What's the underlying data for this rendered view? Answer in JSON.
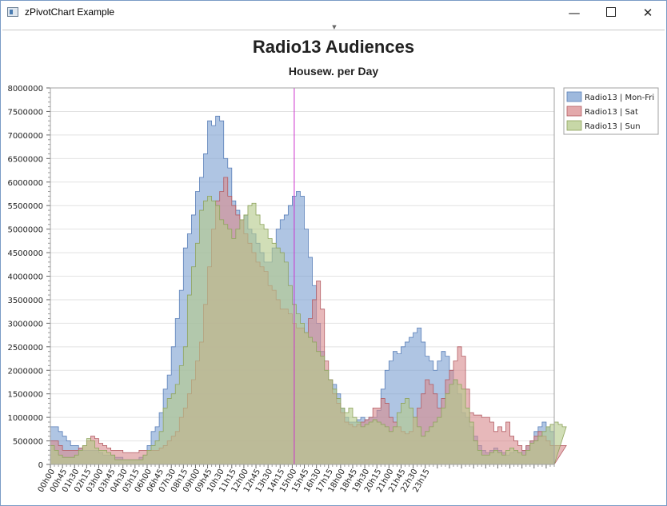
{
  "window": {
    "title": "zPivotChart Example",
    "icon": "app-window-icon",
    "controls": {
      "minimize": "—",
      "close": "✕"
    }
  },
  "colors": {
    "mon_fri": "#7ea1d2",
    "sat": "#d98c8f",
    "sun": "#b4c98a",
    "cursor": "#cc33cc",
    "grid": "#e2e2e2"
  },
  "chart_data": {
    "type": "area",
    "title": "Radio13 Audiences",
    "subtitle": "Housew. per Day",
    "xlabel": "",
    "ylabel": "",
    "ylim": [
      0,
      8000000
    ],
    "yticks": [
      0,
      500000,
      1000000,
      1500000,
      2000000,
      2500000,
      3000000,
      3500000,
      4000000,
      4500000,
      5000000,
      5500000,
      6000000,
      6500000,
      7000000,
      7500000,
      8000000
    ],
    "x_tick_labels": [
      "00h00",
      "00h45",
      "01h30",
      "02h15",
      "03h00",
      "03h45",
      "04h30",
      "05h15",
      "06h00",
      "06h45",
      "07h30",
      "08h15",
      "09h00",
      "09h45",
      "10h30",
      "11h15",
      "12h00",
      "12h45",
      "13h30",
      "14h15",
      "15h00",
      "15h45",
      "16h30",
      "17h15",
      "18h00",
      "18h45",
      "19h30",
      "20h15",
      "21h00",
      "21h45",
      "22h30",
      "23h15"
    ],
    "x_interval_minutes": 15,
    "grid": true,
    "step": true,
    "legend_position": "right-top",
    "cursor_at": "15h00",
    "series": [
      {
        "name": "Radio13 | Mon-Fri",
        "values": [
          800000,
          800000,
          700000,
          600000,
          500000,
          400000,
          400000,
          350000,
          300000,
          300000,
          300000,
          300000,
          250000,
          200000,
          200000,
          200000,
          150000,
          150000,
          100000,
          100000,
          100000,
          100000,
          150000,
          200000,
          400000,
          700000,
          800000,
          1100000,
          1600000,
          1900000,
          2500000,
          3100000,
          3700000,
          4600000,
          4900000,
          5300000,
          5800000,
          6100000,
          6600000,
          7300000,
          7200000,
          7400000,
          7300000,
          6500000,
          6300000,
          5600000,
          5400000,
          5200000,
          5300000,
          5000000,
          4900000,
          4700000,
          4500000,
          4300000,
          4300000,
          4600000,
          5000000,
          5200000,
          5300000,
          5500000,
          5700000,
          5800000,
          5700000,
          5000000,
          4400000,
          3800000,
          3000000,
          2400000,
          2000000,
          1800000,
          1700000,
          1500000,
          1200000,
          1000000,
          900000,
          900000,
          950000,
          1000000,
          950000,
          1000000,
          1000000,
          1150000,
          1600000,
          2000000,
          2200000,
          2400000,
          2350000,
          2500000,
          2600000,
          2700000,
          2800000,
          2900000,
          2600000,
          2300000,
          2200000,
          2000000,
          2200000,
          2400000,
          2300000,
          2000000,
          1800000,
          1500000,
          1100000,
          1000000,
          800000,
          600000,
          400000,
          300000,
          250000,
          300000,
          350000,
          300000,
          250000,
          200000,
          250000,
          300000,
          250000,
          300000,
          400000,
          500000,
          700000,
          800000,
          900000,
          800000,
          700000
        ]
      },
      {
        "name": "Radio13 | Sat",
        "values": [
          500000,
          500000,
          400000,
          300000,
          300000,
          300000,
          300000,
          350000,
          400000,
          500000,
          600000,
          550000,
          450000,
          400000,
          350000,
          300000,
          300000,
          300000,
          250000,
          250000,
          250000,
          250000,
          300000,
          300000,
          300000,
          300000,
          300000,
          350000,
          400000,
          500000,
          600000,
          700000,
          1000000,
          1200000,
          1500000,
          1800000,
          2200000,
          2600000,
          3400000,
          4200000,
          5000000,
          5600000,
          5800000,
          6100000,
          5700000,
          5500000,
          5300000,
          5200000,
          4900000,
          4700000,
          4500000,
          4300000,
          4200000,
          4100000,
          3800000,
          3700000,
          3500000,
          3300000,
          3300000,
          3200000,
          3000000,
          2900000,
          2900000,
          2800000,
          3100000,
          3500000,
          3900000,
          3300000,
          2200000,
          1800000,
          1500000,
          1300000,
          1100000,
          900000,
          850000,
          800000,
          850000,
          900000,
          950000,
          1000000,
          1200000,
          1200000,
          1400000,
          1300000,
          1000000,
          900000,
          800000,
          700000,
          650000,
          700000,
          1000000,
          1200000,
          1500000,
          1800000,
          1700000,
          1500000,
          1200000,
          1400000,
          1800000,
          2000000,
          2200000,
          2500000,
          2300000,
          1600000,
          1100000,
          1050000,
          1050000,
          1000000,
          1000000,
          900000,
          700000,
          800000,
          700000,
          900000,
          600000,
          500000,
          400000,
          300000,
          400000,
          500000,
          600000,
          700000,
          600000,
          500000,
          400000,
          400000,
          400000,
          400000
        ]
      },
      {
        "name": "Radio13 | Sun",
        "values": [
          400000,
          300000,
          200000,
          150000,
          150000,
          150000,
          200000,
          300000,
          400000,
          550000,
          500000,
          350000,
          300000,
          300000,
          250000,
          200000,
          100000,
          100000,
          100000,
          100000,
          100000,
          100000,
          100000,
          200000,
          300000,
          400000,
          500000,
          700000,
          1200000,
          1400000,
          1500000,
          1700000,
          2100000,
          2500000,
          3600000,
          4200000,
          4700000,
          5400000,
          5600000,
          5700000,
          5600000,
          5500000,
          5200000,
          5100000,
          5000000,
          4800000,
          5000000,
          5200000,
          5300000,
          5500000,
          5550000,
          5300000,
          5100000,
          5000000,
          4800000,
          4700000,
          4600000,
          4500000,
          4300000,
          3800000,
          3400000,
          3200000,
          3000000,
          2800000,
          2700000,
          2600000,
          2400000,
          2300000,
          2000000,
          1800000,
          1600000,
          1400000,
          1200000,
          1100000,
          1200000,
          1000000,
          900000,
          800000,
          850000,
          900000,
          950000,
          900000,
          850000,
          800000,
          700000,
          800000,
          1100000,
          1300000,
          1400000,
          1200000,
          1000000,
          800000,
          600000,
          700000,
          800000,
          900000,
          1000000,
          1200000,
          1500000,
          1700000,
          1800000,
          1700000,
          1600000,
          1200000,
          900000,
          500000,
          300000,
          200000,
          200000,
          250000,
          300000,
          250000,
          200000,
          300000,
          350000,
          300000,
          250000,
          200000,
          300000,
          450000,
          500000,
          600000,
          700000,
          800000,
          850000,
          900000,
          850000,
          800000
        ]
      }
    ]
  }
}
